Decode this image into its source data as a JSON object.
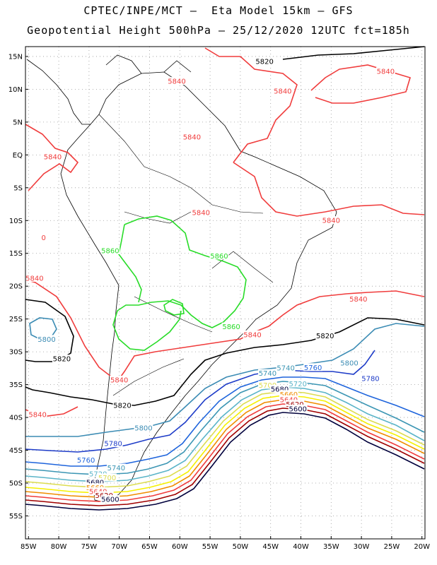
{
  "header": {
    "title_line1": "CPTEC/INPE/MCT –  Eta Model 15km – GFS",
    "title_line2": "Geopotential Height 500hPa – 25/12/2020 12UTC fct=185h"
  },
  "axes": {
    "lat_ticks": [
      "15N",
      "10N",
      "5N",
      "EQ",
      "5S",
      "10S",
      "15S",
      "20S",
      "25S",
      "30S",
      "35S",
      "40S",
      "45S",
      "50S",
      "55S"
    ],
    "lat_values": [
      15,
      10,
      5,
      0,
      -5,
      -10,
      -15,
      -20,
      -25,
      -30,
      -35,
      -40,
      -45,
      -50,
      -55
    ],
    "lon_ticks": [
      "85W",
      "80W",
      "75W",
      "70W",
      "65W",
      "60W",
      "55W",
      "50W",
      "45W",
      "40W",
      "35W",
      "30W",
      "25W",
      "20W"
    ],
    "lon_values": [
      -85,
      -80,
      -75,
      -70,
      -65,
      -60,
      -55,
      -50,
      -45,
      -40,
      -35,
      -30,
      -25,
      -20
    ],
    "lon_range": [
      -85.5,
      -19.5
    ],
    "lat_range": [
      -58.5,
      16.5
    ],
    "grid": "dotted"
  },
  "colors": {
    "5600": "#00003c",
    "5620": "#a00000",
    "5640": "#f03c3c",
    "5660": "#f08c00",
    "5680": "#f5f000",
    "5700": "#dcdc50",
    "5720": "#5ab4c8",
    "5740": "#3c96b4",
    "5760": "#1e64dc",
    "5780": "#1e3cc8",
    "5800": "#3c8cb4",
    "5820": "#000000",
    "5840": "#f03c3c",
    "5860": "#28dc28",
    "coast": "#000000"
  },
  "contour_labels": [
    {
      "text": "5820",
      "color": "5820",
      "lon": -46,
      "lat": 14
    },
    {
      "text": "5840",
      "color": "5840",
      "lon": -26,
      "lat": 12.5
    },
    {
      "text": "5840",
      "color": "5840",
      "lon": -60.5,
      "lat": 11
    },
    {
      "text": "5840",
      "color": "5840",
      "lon": -43,
      "lat": 9.5
    },
    {
      "text": "5840",
      "color": "5840",
      "lon": -58,
      "lat": 2.5
    },
    {
      "text": "5840",
      "color": "5840",
      "lon": -81,
      "lat": -0.5
    },
    {
      "text": "5840",
      "color": "5840",
      "lon": -56.5,
      "lat": -9
    },
    {
      "text": "5840",
      "color": "5840",
      "lon": -35,
      "lat": -10.2
    },
    {
      "text": "0",
      "color": "5840",
      "lon": -82.5,
      "lat": -12.8
    },
    {
      "text": "5860",
      "color": "5860",
      "lon": -71.5,
      "lat": -14.8
    },
    {
      "text": "5860",
      "color": "5860",
      "lon": -53.5,
      "lat": -15.6
    },
    {
      "text": "5840",
      "color": "5840",
      "lon": -84,
      "lat": -19
    },
    {
      "text": "5840",
      "color": "5840",
      "lon": -30.5,
      "lat": -22.2
    },
    {
      "text": "5860",
      "color": "5860",
      "lon": -51.5,
      "lat": -26.4
    },
    {
      "text": "5840",
      "color": "5840",
      "lon": -48,
      "lat": -27.6
    },
    {
      "text": "5820",
      "color": "5820",
      "lon": -36,
      "lat": -27.8
    },
    {
      "text": "5800",
      "color": "5800",
      "lon": -82,
      "lat": -28.3
    },
    {
      "text": "5820",
      "color": "5820",
      "lon": -79.5,
      "lat": -31.3
    },
    {
      "text": "5800",
      "color": "5800",
      "lon": -32,
      "lat": -31.9
    },
    {
      "text": "5740",
      "color": "5740",
      "lon": -42.5,
      "lat": -32.7
    },
    {
      "text": "5760",
      "color": "5760",
      "lon": -38,
      "lat": -32.6
    },
    {
      "text": "5740",
      "color": "5740",
      "lon": -45.5,
      "lat": -33.5
    },
    {
      "text": "5780",
      "color": "5780",
      "lon": -28.5,
      "lat": -34.3
    },
    {
      "text": "5840",
      "color": "5840",
      "lon": -70,
      "lat": -34.5
    },
    {
      "text": "5720",
      "color": "5720",
      "lon": -40.5,
      "lat": -35.1
    },
    {
      "text": "5700",
      "color": "5700",
      "lon": -45.5,
      "lat": -35.3
    },
    {
      "text": "5680",
      "color": "5600",
      "lon": -43.5,
      "lat": -35.9
    },
    {
      "text": "5660",
      "color": "5660",
      "lon": -42,
      "lat": -36.7
    },
    {
      "text": "5640",
      "color": "5640",
      "lon": -42,
      "lat": -37.5
    },
    {
      "text": "5620",
      "color": "5620",
      "lon": -41,
      "lat": -38.2
    },
    {
      "text": "5600",
      "color": "5600",
      "lon": -40.5,
      "lat": -38.9
    },
    {
      "text": "5820",
      "color": "5820",
      "lon": -69.5,
      "lat": -38.4
    },
    {
      "text": "5840",
      "color": "5840",
      "lon": -83.5,
      "lat": -39.8
    },
    {
      "text": "5800",
      "color": "5800",
      "lon": -66,
      "lat": -41.8
    },
    {
      "text": "5780",
      "color": "5780",
      "lon": -71,
      "lat": -44.2
    },
    {
      "text": "5760",
      "color": "5760",
      "lon": -75.5,
      "lat": -46.7
    },
    {
      "text": "5740",
      "color": "5740",
      "lon": -70.5,
      "lat": -47.9
    },
    {
      "text": "5720",
      "color": "5720",
      "lon": -73.5,
      "lat": -48.8
    },
    {
      "text": "5700",
      "color": "5700",
      "lon": -72,
      "lat": -49.4
    },
    {
      "text": "5680",
      "color": "5600",
      "lon": -74,
      "lat": -50.1
    },
    {
      "text": "5660",
      "color": "5660",
      "lon": -74,
      "lat": -50.9
    },
    {
      "text": "5640",
      "color": "5640",
      "lon": -73.5,
      "lat": -51.5
    },
    {
      "text": "5620",
      "color": "5620",
      "lon": -72.5,
      "lat": -52.1
    },
    {
      "text": "5600",
      "color": "5600",
      "lon": -71.5,
      "lat": -52.7
    }
  ]
}
